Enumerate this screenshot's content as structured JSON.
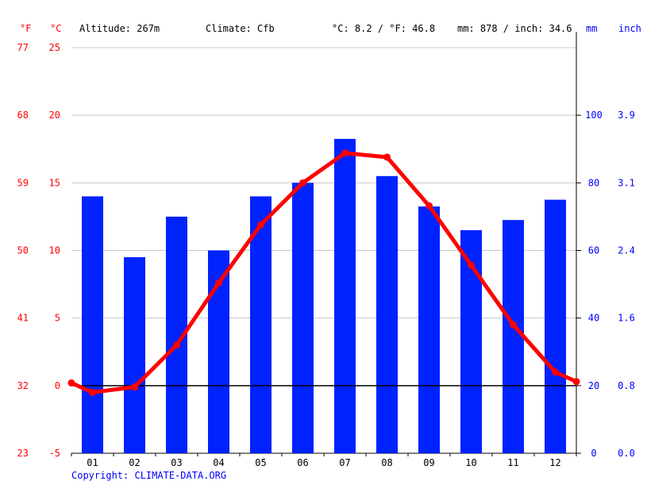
{
  "header": {
    "unit_f": "°F",
    "unit_c": "°C",
    "altitude": "Altitude: 267m",
    "climate": "Climate: Cfb",
    "temp_avg": "°C: 8.2 / °F: 46.8",
    "precip_total": "mm: 878 / inch: 34.6",
    "unit_mm": "mm",
    "unit_inch": "inch"
  },
  "copyright": "Copyright: CLIMATE-DATA.ORG",
  "colors": {
    "bars": "#0022ff",
    "line": "#ff0000",
    "grid": "#c8c8c8",
    "zero_line": "#000000",
    "left_axis_text": "#ff0000",
    "right_axis_text": "#0000ff"
  },
  "chart_data": {
    "type": "bar",
    "categories": [
      "01",
      "02",
      "03",
      "04",
      "05",
      "06",
      "07",
      "08",
      "09",
      "10",
      "11",
      "12"
    ],
    "series": [
      {
        "name": "Precipitation (mm)",
        "type": "bar",
        "axis": "right",
        "values": [
          76,
          58,
          70,
          60,
          76,
          80,
          93,
          82,
          73,
          66,
          69,
          75
        ]
      },
      {
        "name": "Temperature (°C)",
        "type": "line",
        "axis": "left",
        "values": [
          -0.5,
          -0.1,
          3.0,
          7.6,
          11.9,
          15.0,
          17.2,
          16.9,
          13.3,
          8.9,
          4.5,
          1.0
        ],
        "edge_values": [
          0.2,
          0.3
        ]
      }
    ],
    "left_axis_c": {
      "ticks": [
        25,
        20,
        15,
        10,
        5,
        0,
        -5
      ],
      "ylim": [
        -5,
        25
      ]
    },
    "left_axis_f": {
      "ticks": [
        77,
        68,
        59,
        50,
        41,
        32,
        23
      ]
    },
    "right_axis_mm": {
      "ticks": [
        100,
        80,
        60,
        40,
        20,
        0
      ],
      "ylim": [
        0,
        120
      ]
    },
    "right_axis_inch": {
      "ticks": [
        "3.9",
        "3.1",
        "2.4",
        "1.6",
        "0.8",
        "0.0"
      ]
    },
    "grid": true
  }
}
